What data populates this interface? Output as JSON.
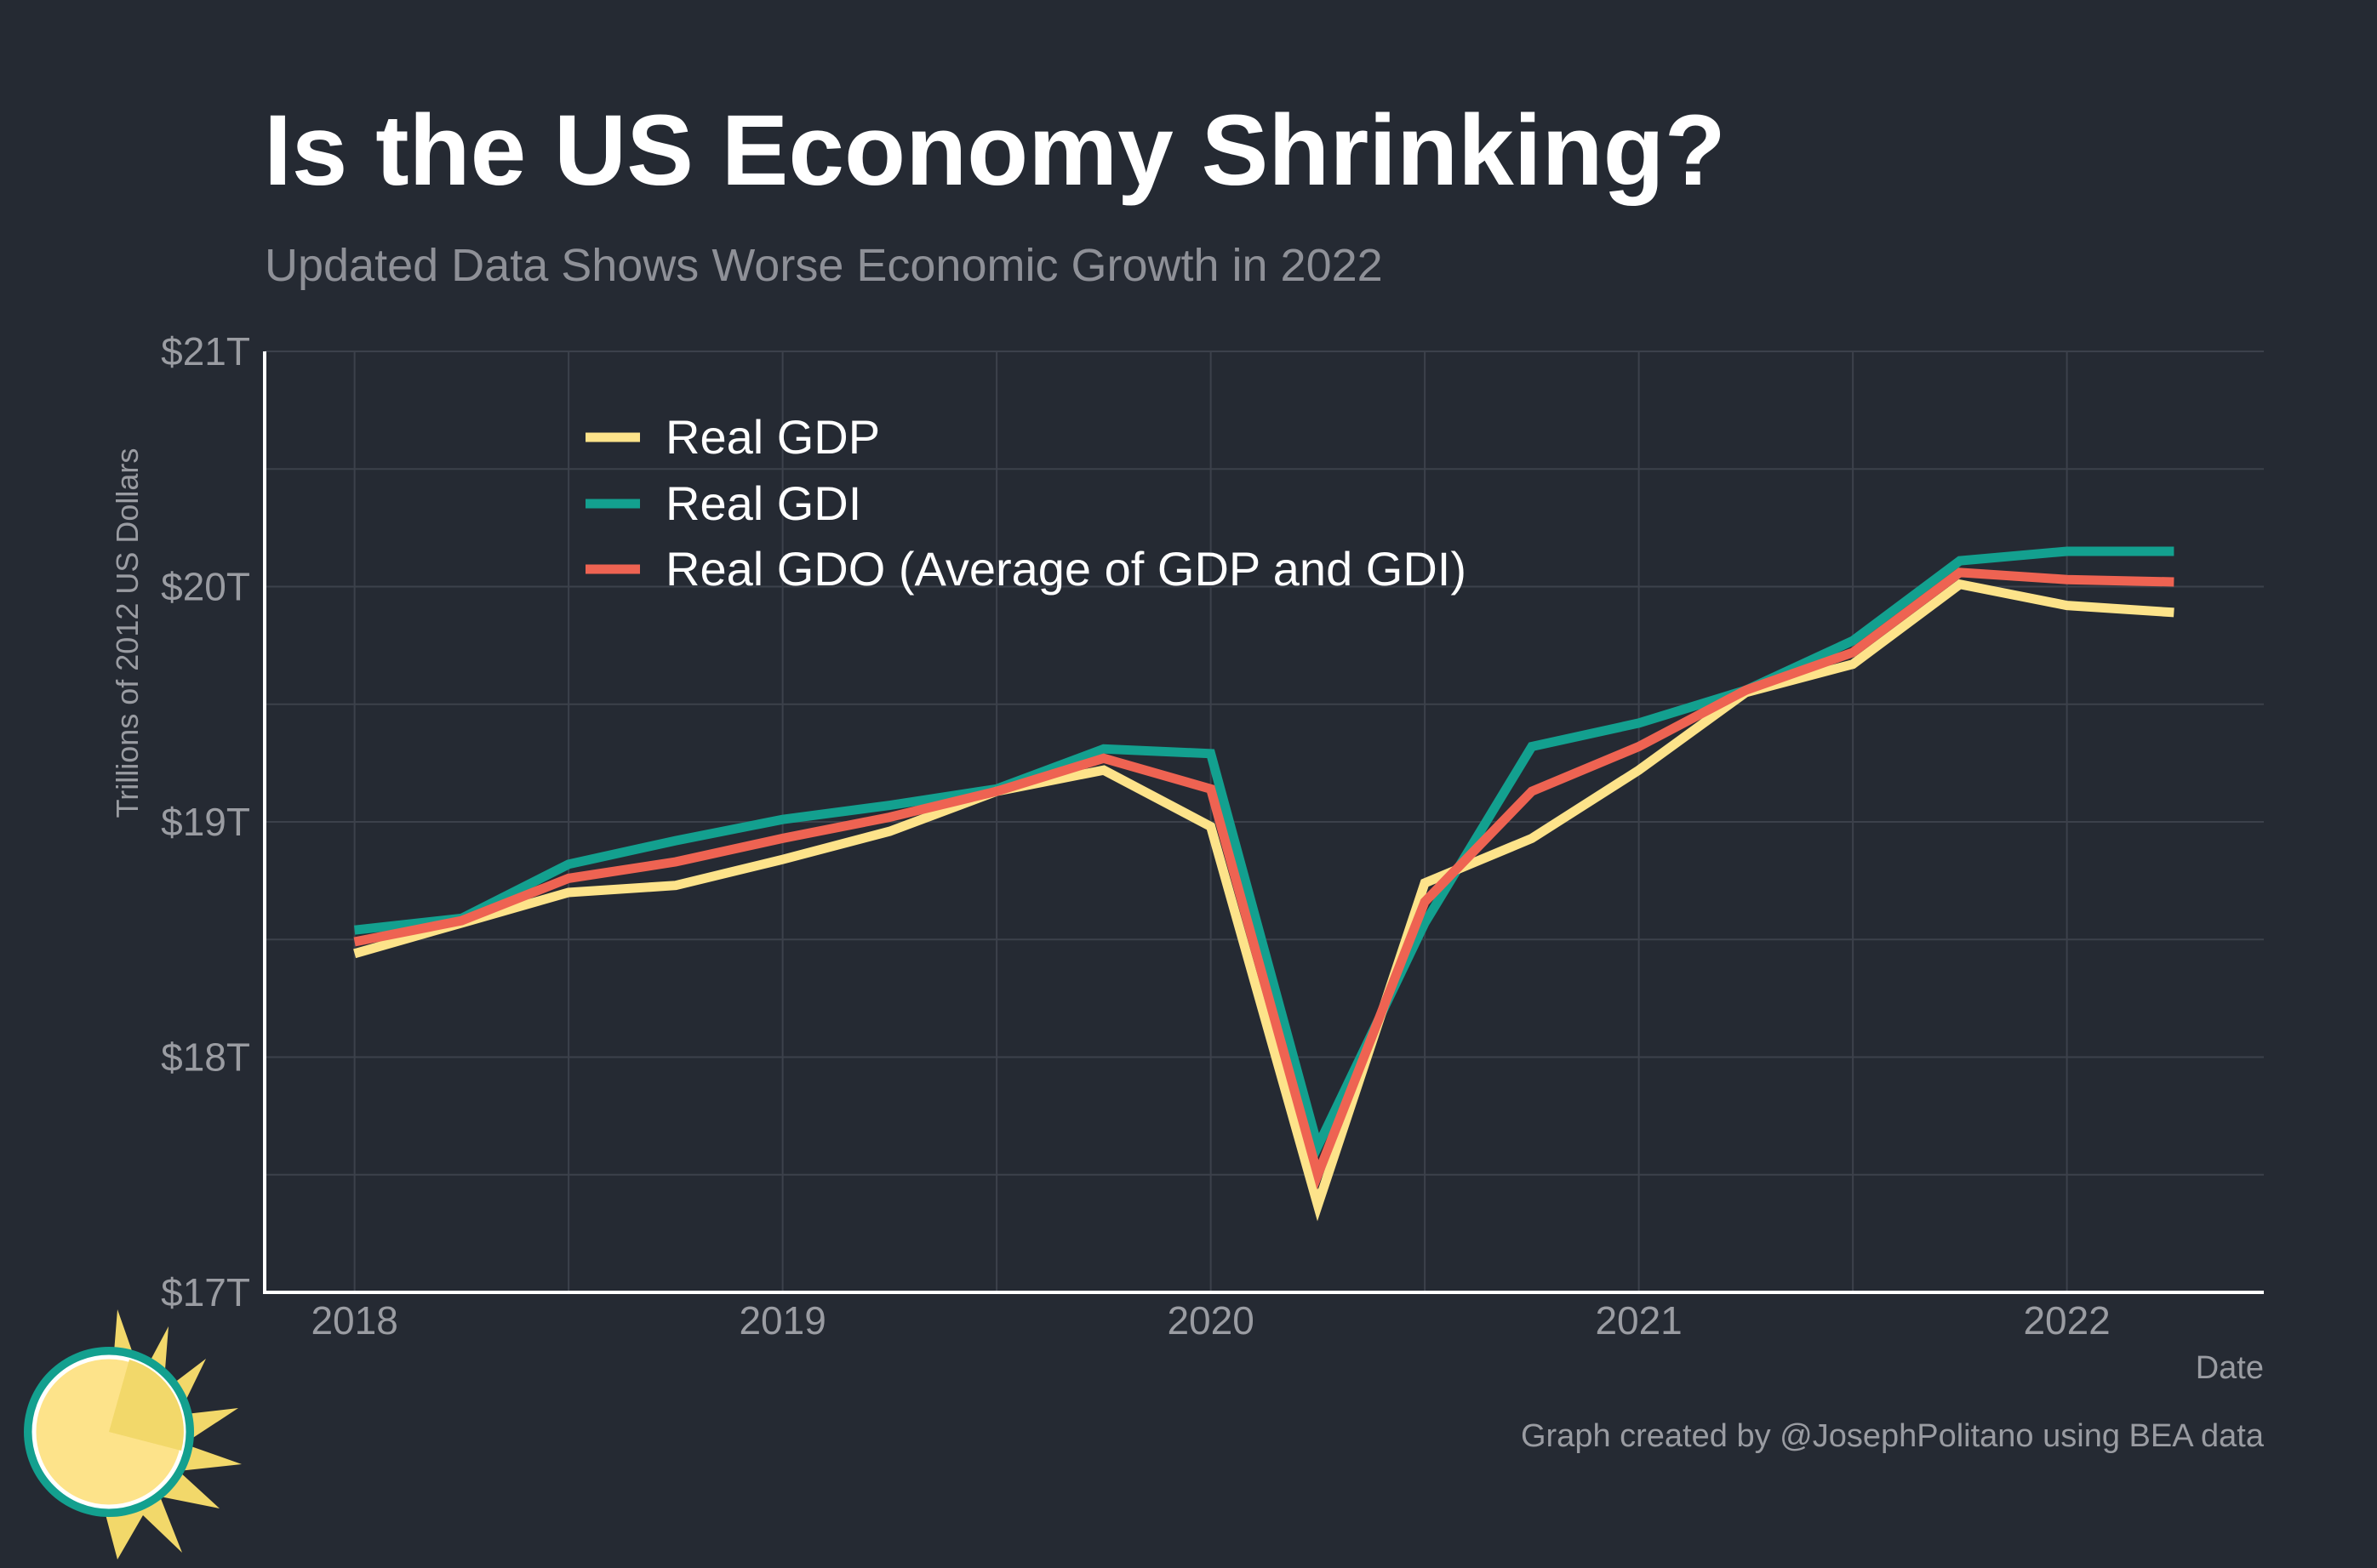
{
  "colors": {
    "background": "#252a33",
    "grid": "#3c414b",
    "axis": "#ffffff",
    "gdp": "#fde38a",
    "gdi": "#13a08f",
    "gdo": "#ee6352"
  },
  "icons": {
    "logo": "sun-icon"
  },
  "chart_data": {
    "type": "line",
    "title": "Is the US Economy Shrinking?",
    "subtitle": "Updated Data Shows Worse Economic Growth in 2022",
    "xlabel": "Date",
    "ylabel": "Trillions of 2012 US Dollars",
    "credit": "Graph created by @JosephPolitano using BEA data",
    "xlim": [
      2017.79,
      2022.46
    ],
    "ylim": [
      17,
      21
    ],
    "grid": true,
    "legend_position": "top-left",
    "x_ticks": [
      {
        "value": 2018,
        "label": "2018"
      },
      {
        "value": 2019,
        "label": "2019"
      },
      {
        "value": 2020,
        "label": "2020"
      },
      {
        "value": 2021,
        "label": "2021"
      },
      {
        "value": 2022,
        "label": "2022"
      }
    ],
    "y_ticks": [
      {
        "value": 17,
        "label": "$17T"
      },
      {
        "value": 18,
        "label": "$18T"
      },
      {
        "value": 19,
        "label": "$19T"
      },
      {
        "value": 20,
        "label": "$20T"
      },
      {
        "value": 21,
        "label": "$21T"
      }
    ],
    "x": [
      2018.0,
      2018.25,
      2018.5,
      2018.75,
      2019.0,
      2019.25,
      2019.5,
      2019.75,
      2020.0,
      2020.25,
      2020.5,
      2020.75,
      2021.0,
      2021.25,
      2021.5,
      2021.75,
      2022.0,
      2022.25
    ],
    "series": [
      {
        "name": "Real GDP",
        "color": "#fde38a",
        "values": [
          18.44,
          18.57,
          18.7,
          18.73,
          18.84,
          18.96,
          19.13,
          19.22,
          18.98,
          17.37,
          18.74,
          18.93,
          19.22,
          19.55,
          19.67,
          20.01,
          19.92,
          19.89
        ]
      },
      {
        "name": "Real GDI",
        "color": "#13a08f",
        "values": [
          18.54,
          18.59,
          18.82,
          18.92,
          19.01,
          19.07,
          19.14,
          19.31,
          19.29,
          17.62,
          18.57,
          19.32,
          19.42,
          19.56,
          19.77,
          20.11,
          20.15,
          20.15
        ]
      },
      {
        "name": "Real GDO (Average of GDP and GDI)",
        "color": "#ee6352",
        "values": [
          18.49,
          18.58,
          18.76,
          18.83,
          18.93,
          19.02,
          19.13,
          19.27,
          19.14,
          17.5,
          18.66,
          19.13,
          19.32,
          19.56,
          19.72,
          20.06,
          20.03,
          20.02
        ]
      }
    ]
  }
}
